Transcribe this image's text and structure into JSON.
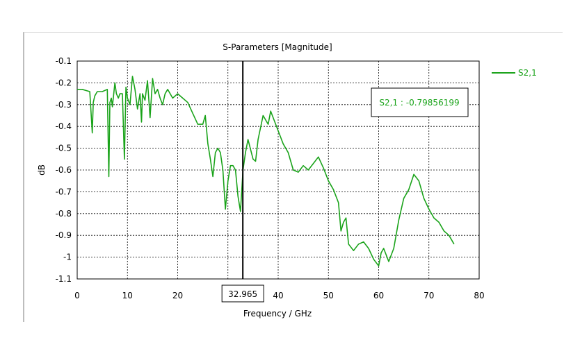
{
  "chart_data": {
    "type": "line",
    "title": "S-Parameters [Magnitude]",
    "xlabel": "Frequency / GHz",
    "ylabel": "dB",
    "xlim": [
      0,
      80
    ],
    "ylim": [
      -1.1,
      -0.1
    ],
    "x_ticks": [
      "0",
      "10",
      "20",
      "30",
      "40",
      "50",
      "60",
      "70",
      "80"
    ],
    "y_ticks": [
      "-0.1",
      "-0.2",
      "-0.3",
      "-0.4",
      "-0.5",
      "-0.6",
      "-0.7",
      "-0.8",
      "-0.9",
      "-1",
      "-1.1"
    ],
    "grid": true,
    "legend": "top-right",
    "marker": {
      "x": 32.965,
      "x_label": "32.965",
      "text": "S2,1 : -0.79856199"
    },
    "colors": {
      "series": "#1aa31a",
      "marker": "#000000"
    },
    "series": [
      {
        "name": "S2,1",
        "x": [
          0,
          1,
          2.5,
          3,
          3.2,
          3.5,
          4,
          5,
          6,
          6.3,
          6.5,
          6.8,
          7,
          7.5,
          7.8,
          8.2,
          8.5,
          9,
          9.4,
          9.7,
          10,
          10.5,
          11,
          11.5,
          12,
          12.5,
          12.8,
          13,
          13.5,
          14,
          14.5,
          15,
          15.5,
          16,
          16.5,
          17,
          17.5,
          18,
          19,
          20,
          21,
          22,
          23,
          24,
          25,
          25.5,
          26,
          26.5,
          27,
          27.5,
          28,
          28.5,
          29,
          29.5,
          30,
          30.5,
          31,
          31.5,
          32,
          32.5,
          33,
          33.5,
          34,
          35,
          35.5,
          36,
          37,
          38,
          38.5,
          39,
          40,
          41,
          42,
          43,
          44,
          45,
          46,
          47,
          48,
          49,
          50,
          51,
          52,
          52.5,
          53,
          53.5,
          54,
          55,
          56,
          57,
          58,
          59,
          60,
          60.5,
          61,
          62,
          63,
          64,
          65,
          66,
          67,
          68,
          69,
          70,
          71,
          72,
          73,
          74,
          75
        ],
        "values": [
          -0.23,
          -0.23,
          -0.24,
          -0.43,
          -0.29,
          -0.26,
          -0.24,
          -0.24,
          -0.23,
          -0.63,
          -0.29,
          -0.27,
          -0.31,
          -0.2,
          -0.25,
          -0.27,
          -0.25,
          -0.25,
          -0.55,
          -0.22,
          -0.27,
          -0.3,
          -0.17,
          -0.23,
          -0.32,
          -0.25,
          -0.38,
          -0.25,
          -0.28,
          -0.19,
          -0.36,
          -0.18,
          -0.25,
          -0.23,
          -0.27,
          -0.3,
          -0.25,
          -0.23,
          -0.27,
          -0.25,
          -0.27,
          -0.29,
          -0.34,
          -0.39,
          -0.39,
          -0.35,
          -0.48,
          -0.55,
          -0.63,
          -0.52,
          -0.5,
          -0.52,
          -0.6,
          -0.78,
          -0.65,
          -0.58,
          -0.58,
          -0.6,
          -0.72,
          -0.79,
          -0.6,
          -0.52,
          -0.46,
          -0.55,
          -0.56,
          -0.46,
          -0.35,
          -0.39,
          -0.33,
          -0.36,
          -0.42,
          -0.48,
          -0.52,
          -0.6,
          -0.61,
          -0.58,
          -0.6,
          -0.57,
          -0.54,
          -0.59,
          -0.65,
          -0.69,
          -0.75,
          -0.88,
          -0.84,
          -0.82,
          -0.94,
          -0.97,
          -0.94,
          -0.93,
          -0.96,
          -1.01,
          -1.04,
          -0.98,
          -0.96,
          -1.02,
          -0.96,
          -0.83,
          -0.73,
          -0.69,
          -0.62,
          -0.65,
          -0.73,
          -0.78,
          -0.82,
          -0.84,
          -0.88,
          -0.9,
          -0.94
        ]
      }
    ]
  }
}
